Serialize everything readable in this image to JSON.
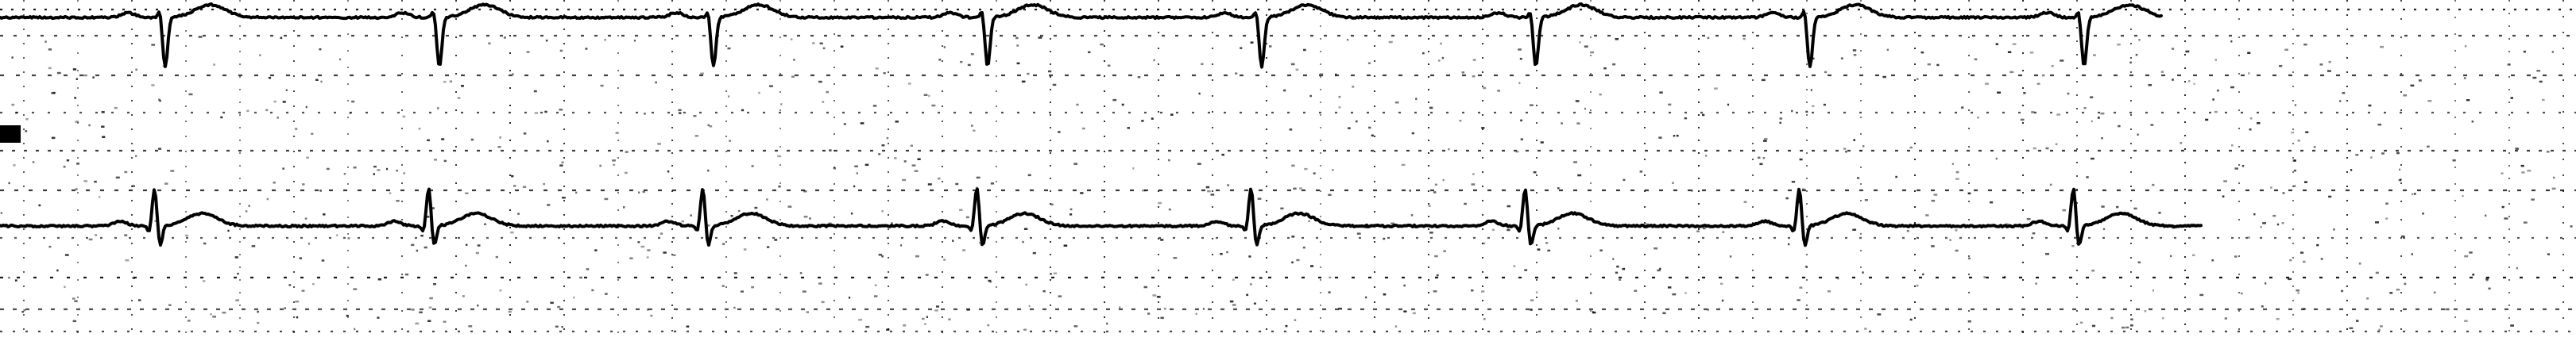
{
  "ecg": {
    "background": "#ffffff",
    "grid_color": "#000000",
    "trace_color": "#000000",
    "leads": [
      {
        "beats": 8
      },
      {
        "beats": 8
      }
    ]
  }
}
